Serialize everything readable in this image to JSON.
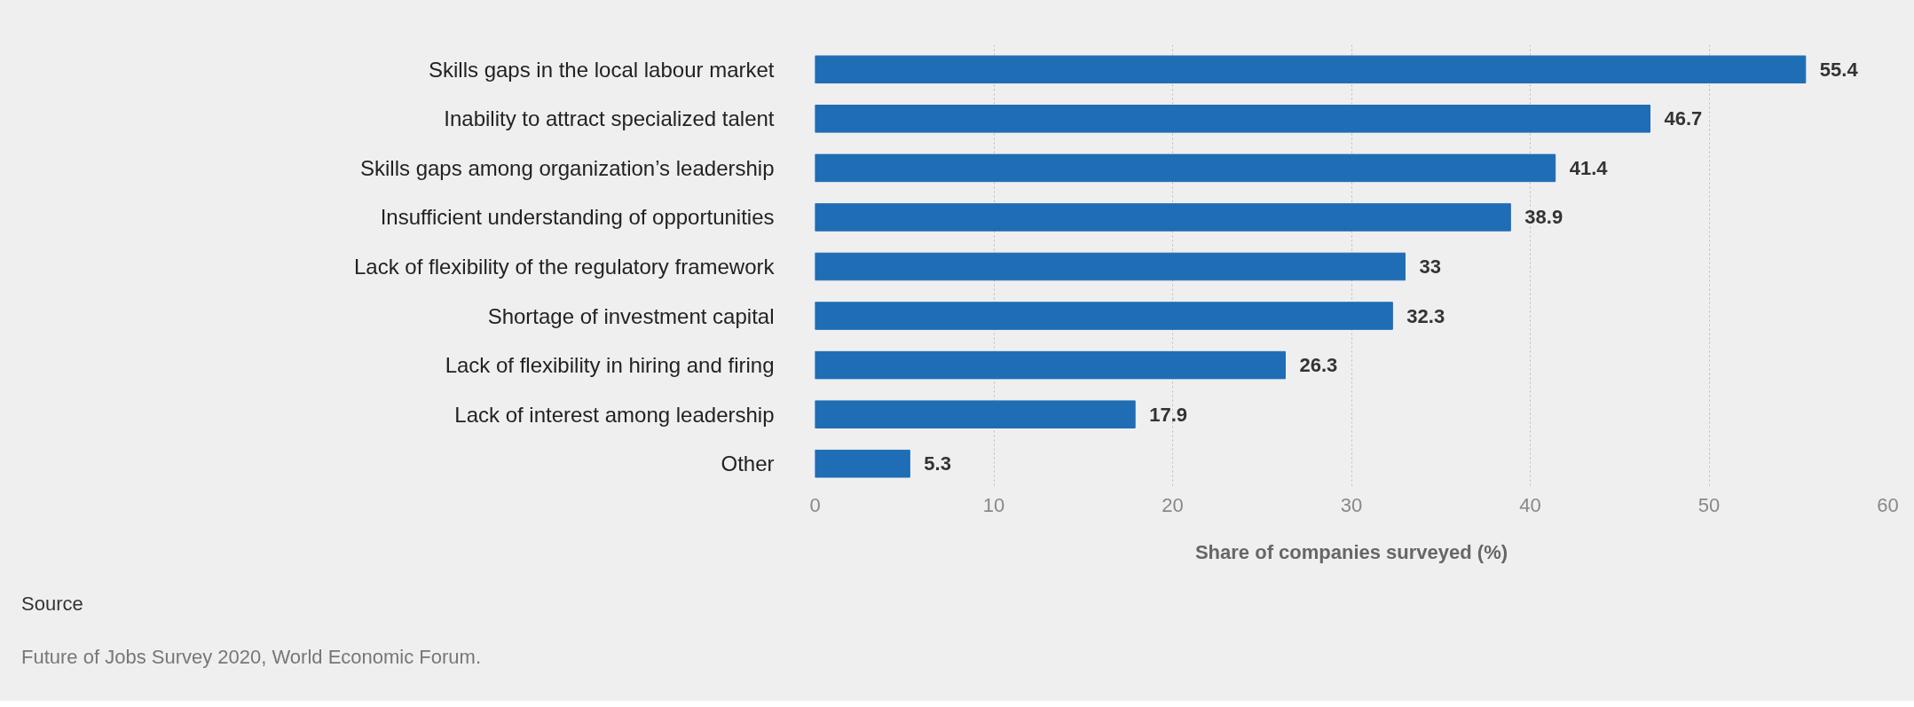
{
  "chart_data": {
    "type": "bar",
    "orientation": "horizontal",
    "xlabel": "Share of companies surveyed (%)",
    "categories": [
      "Skills gaps in the local labour market",
      "Inability to attract specialized talent",
      "Skills gaps among organization’s leadership",
      "Insufficient understanding of opportunities",
      "Lack of flexibility of the regulatory framework",
      "Shortage of investment capital",
      "Lack of flexibility in hiring and firing",
      "Lack of interest among leadership",
      "Other"
    ],
    "values": [
      55.4,
      46.7,
      41.4,
      38.9,
      33,
      32.3,
      26.3,
      17.9,
      5.3
    ],
    "color": "#1f6db5",
    "xlim": [
      0,
      60
    ],
    "xticks": [
      0,
      10,
      20,
      30,
      40,
      50,
      60
    ],
    "grid": "x",
    "data_labels": true,
    "annotations": [
      "Source",
      "Future of Jobs Survey 2020, World Economic Forum."
    ]
  }
}
